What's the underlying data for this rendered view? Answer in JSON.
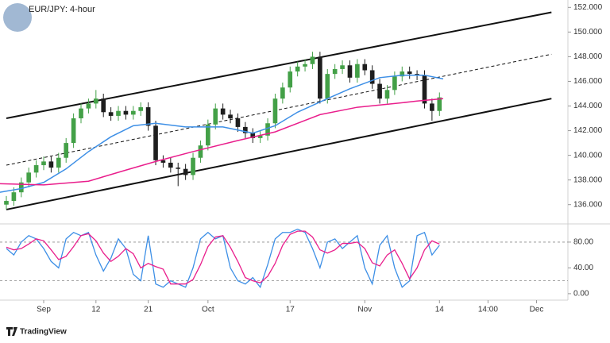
{
  "chart_data": [
    {
      "type": "candlestick",
      "title": "EUR/JPY: 4-hour",
      "x": [
        -5,
        -4,
        -3,
        -2,
        -1,
        0,
        1,
        2,
        3,
        4,
        5,
        6,
        7,
        8,
        9,
        10,
        11,
        12,
        13,
        14,
        15,
        16,
        17,
        18,
        19,
        20,
        21,
        22,
        23,
        24,
        25,
        26,
        27,
        28,
        29,
        30,
        31,
        32,
        33,
        34,
        35,
        36,
        37,
        38,
        39,
        40,
        41,
        42,
        43,
        44,
        45,
        46,
        47,
        48,
        49,
        50,
        51,
        52,
        53
      ],
      "open": [
        136.0,
        136.3,
        137.0,
        137.8,
        138.6,
        139.2,
        139.5,
        139.0,
        139.8,
        141.0,
        143.0,
        143.8,
        144.2,
        144.6,
        143.5,
        143.2,
        143.6,
        143.3,
        143.6,
        143.9,
        142.4,
        139.6,
        139.4,
        139.0,
        138.9,
        138.4,
        139.8,
        140.8,
        142.5,
        143.8,
        143.3,
        143.0,
        142.3,
        141.8,
        141.4,
        141.6,
        142.6,
        144.6,
        145.5,
        146.8,
        147.2,
        147.4,
        148.0,
        144.6,
        146.6,
        147.0,
        147.3,
        146.3,
        147.4,
        146.9,
        145.8,
        144.6,
        145.3,
        146.4,
        146.8,
        146.6,
        146.5,
        144.2,
        143.6
      ],
      "high": [
        136.7,
        137.4,
        138.2,
        139.0,
        139.6,
        139.9,
        139.9,
        140.2,
        141.4,
        143.4,
        144.2,
        144.6,
        145.3,
        145.0,
        143.9,
        144.0,
        144.0,
        144.0,
        144.3,
        144.3,
        142.8,
        140.0,
        139.8,
        139.4,
        139.3,
        140.2,
        141.2,
        142.9,
        144.2,
        144.2,
        143.7,
        143.4,
        142.7,
        142.2,
        142.0,
        143.0,
        145.0,
        145.9,
        147.2,
        147.6,
        147.8,
        148.4,
        148.4,
        147.0,
        147.4,
        147.7,
        147.7,
        147.8,
        147.8,
        147.3,
        146.2,
        145.7,
        146.8,
        147.2,
        147.2,
        146.9,
        146.9,
        144.6,
        145.1
      ],
      "low": [
        135.6,
        135.9,
        136.6,
        137.4,
        138.2,
        138.8,
        138.6,
        138.6,
        139.4,
        140.6,
        142.6,
        143.4,
        143.8,
        143.1,
        142.8,
        142.8,
        142.9,
        142.9,
        143.2,
        142.0,
        139.2,
        139.0,
        138.6,
        137.5,
        138.0,
        138.0,
        139.4,
        140.4,
        142.1,
        142.9,
        142.6,
        141.9,
        141.4,
        141.0,
        141.0,
        141.2,
        142.2,
        144.2,
        145.1,
        146.4,
        146.8,
        147.0,
        144.2,
        144.2,
        146.2,
        146.6,
        145.9,
        145.9,
        146.5,
        145.4,
        144.2,
        144.2,
        144.9,
        146.0,
        146.2,
        146.1,
        143.8,
        142.8,
        143.2
      ],
      "close": [
        136.3,
        137.0,
        137.8,
        138.6,
        139.2,
        139.5,
        139.0,
        139.8,
        141.0,
        143.0,
        143.8,
        144.2,
        144.6,
        143.5,
        143.2,
        143.6,
        143.3,
        143.6,
        143.9,
        142.4,
        139.6,
        139.4,
        139.0,
        138.9,
        138.4,
        139.8,
        140.8,
        142.5,
        143.8,
        143.3,
        143.0,
        142.3,
        141.8,
        141.4,
        141.6,
        142.6,
        144.6,
        145.5,
        146.8,
        147.2,
        147.4,
        148.0,
        144.6,
        146.6,
        147.0,
        147.3,
        146.3,
        147.4,
        146.9,
        145.8,
        144.6,
        145.3,
        146.4,
        146.8,
        146.6,
        146.5,
        144.2,
        143.6,
        144.7
      ],
      "up_color": "#43a047",
      "down_color": "#1e1e1e",
      "series": [
        {
          "color": "#3d8fe6",
          "x": [
            -5.9,
            -3,
            0,
            3,
            6,
            9,
            12,
            15,
            19,
            24,
            28,
            31,
            34,
            38,
            41,
            45,
            48,
            51,
            53.5
          ],
          "values": [
            137.0,
            137.3,
            137.8,
            138.9,
            140.3,
            141.5,
            142.4,
            142.6,
            142.3,
            142.3,
            141.8,
            142.4,
            143.5,
            144.6,
            145.4,
            146.3,
            146.5,
            146.5,
            146.2
          ]
        },
        {
          "color": "#e91e8c",
          "x": [
            -5.9,
            0,
            6,
            11,
            15,
            20,
            26,
            31,
            37,
            42,
            47,
            50,
            53.5
          ],
          "values": [
            137.7,
            137.6,
            137.9,
            138.8,
            139.5,
            140.3,
            141.2,
            141.9,
            143.3,
            143.9,
            144.2,
            144.4,
            144.6
          ]
        }
      ],
      "trendlines": [
        {
          "x": [
            -5,
            68
          ],
          "values": [
            143.0,
            151.6
          ],
          "style": "solid"
        },
        {
          "x": [
            -5,
            68
          ],
          "values": [
            135.6,
            144.6
          ],
          "style": "solid"
        },
        {
          "x": [
            -5,
            68
          ],
          "values": [
            139.2,
            148.2
          ],
          "style": "dashed"
        }
      ],
      "xlim": [
        -5.85,
        70.2
      ],
      "ylim": [
        134.5,
        152.6
      ],
      "yticks": [
        {
          "value": 136,
          "label": "136.000"
        },
        {
          "value": 138,
          "label": "138.000"
        },
        {
          "value": 140,
          "label": "140.000"
        },
        {
          "value": 142,
          "label": "142.000"
        },
        {
          "value": 144,
          "label": "144.000"
        },
        {
          "value": 146,
          "label": "146.000"
        },
        {
          "value": 148,
          "label": "148.000"
        },
        {
          "value": 150,
          "label": "150.000"
        },
        {
          "value": 152,
          "label": "152.000"
        }
      ],
      "grid": false
    },
    {
      "type": "line",
      "x": [
        -5,
        -4,
        -3,
        -2,
        -1,
        0,
        1,
        2,
        3,
        4,
        5,
        6,
        7,
        8,
        9,
        10,
        11,
        12,
        13,
        14,
        15,
        16,
        17,
        18,
        19,
        20,
        21,
        22,
        23,
        24,
        25,
        26,
        27,
        28,
        29,
        30,
        31,
        32,
        33,
        34,
        35,
        36,
        37,
        38,
        39,
        40,
        41,
        42,
        43,
        44,
        45,
        46,
        47,
        48,
        49,
        50,
        51,
        52,
        53
      ],
      "series": [
        {
          "color": "#3d8fe6",
          "values": [
            70,
            60,
            80,
            90,
            85,
            70,
            50,
            40,
            85,
            95,
            90,
            95,
            60,
            35,
            55,
            85,
            70,
            30,
            20,
            90,
            15,
            10,
            20,
            15,
            10,
            40,
            85,
            95,
            85,
            90,
            40,
            20,
            15,
            25,
            10,
            45,
            85,
            95,
            95,
            100,
            95,
            70,
            40,
            80,
            85,
            70,
            80,
            90,
            40,
            15,
            75,
            90,
            40,
            10,
            20,
            90,
            95,
            60,
            75
          ]
        },
        {
          "color": "#e91e8c",
          "values": [
            72,
            68,
            70,
            77,
            85,
            82,
            68,
            53,
            58,
            73,
            90,
            93,
            82,
            63,
            50,
            58,
            70,
            62,
            40,
            47,
            42,
            38,
            15,
            15,
            15,
            22,
            45,
            73,
            88,
            90,
            72,
            50,
            25,
            20,
            17,
            27,
            47,
            75,
            92,
            97,
            97,
            88,
            68,
            63,
            68,
            78,
            78,
            80,
            70,
            48,
            43,
            60,
            68,
            47,
            23,
            40,
            68,
            82,
            77
          ]
        }
      ],
      "levels": [
        80,
        20
      ],
      "xlim": [
        -5.85,
        70.2
      ],
      "ylim": [
        -10,
        107
      ],
      "yticks": [
        {
          "value": 0,
          "label": "0.00"
        },
        {
          "value": 40,
          "label": "40.00"
        },
        {
          "value": 80,
          "label": "80.00"
        }
      ],
      "xticks": [
        {
          "value": 0,
          "label": "Sep"
        },
        {
          "value": 7,
          "label": "12"
        },
        {
          "value": 14,
          "label": "21"
        },
        {
          "value": 22,
          "label": "Oct"
        },
        {
          "value": 33,
          "label": "17"
        },
        {
          "value": 43,
          "label": "Nov"
        },
        {
          "value": 53,
          "label": "14"
        },
        {
          "value": 59.5,
          "label": "14:00"
        },
        {
          "value": 66,
          "label": "Dec"
        }
      ]
    }
  ],
  "brand": "TradingView"
}
